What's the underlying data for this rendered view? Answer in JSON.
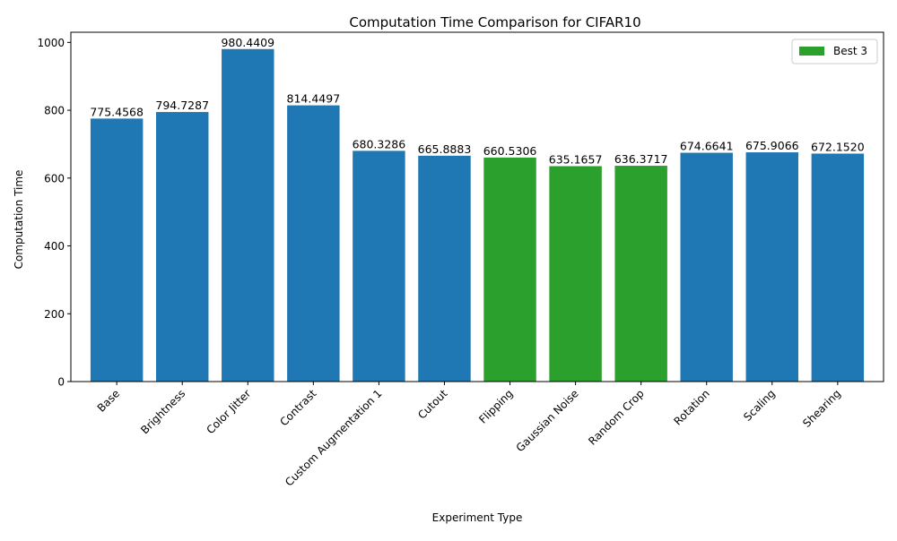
{
  "chart_data": {
    "type": "bar",
    "title": "Computation Time Comparison for CIFAR10",
    "xlabel": "Experiment Type",
    "ylabel": "Computation Time",
    "ylim": [
      0,
      1030
    ],
    "yticks": [
      0,
      200,
      400,
      600,
      800,
      1000
    ],
    "grid": false,
    "legend": {
      "position": "top-right",
      "entries": [
        {
          "label": "Best 3",
          "color": "#2ca02c"
        }
      ]
    },
    "categories": [
      "Base",
      "Brightness",
      "Color Jitter",
      "Contrast",
      "Custom Augmentation 1",
      "Cutout",
      "Flipping",
      "Gaussian Noise",
      "Random Crop",
      "Rotation",
      "Scaling",
      "Shearing"
    ],
    "values": [
      775.4568,
      794.7287,
      980.4409,
      814.4497,
      680.3286,
      665.8883,
      660.5306,
      635.1657,
      636.3717,
      674.6641,
      675.9066,
      672.152
    ],
    "value_labels": [
      "775.4568",
      "794.7287",
      "980.4409",
      "814.4497",
      "680.3286",
      "665.8883",
      "660.5306",
      "635.1657",
      "636.3717",
      "674.6641",
      "675.9066",
      "672.1520"
    ],
    "best3": [
      "Flipping",
      "Gaussian Noise",
      "Random Crop"
    ],
    "colors": {
      "default": "#1f77b4",
      "best": "#2ca02c"
    }
  }
}
